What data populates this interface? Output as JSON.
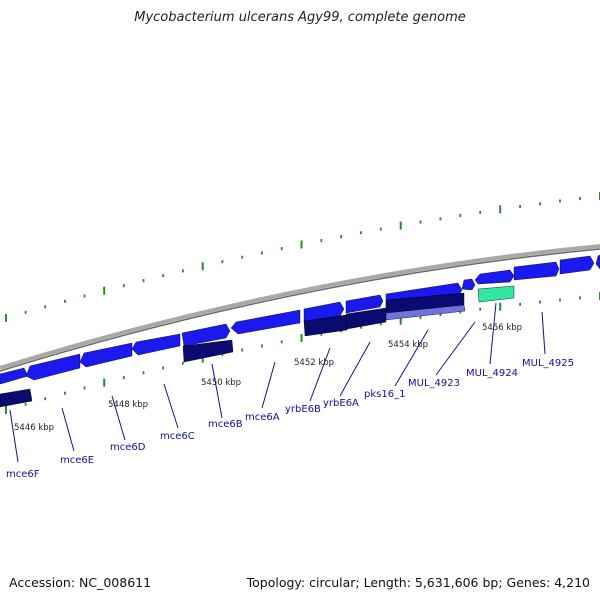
{
  "title": "Mycobacterium ulcerans Agy99, complete genome",
  "footer": {
    "accession": "Accession: NC_008611",
    "topology": "Topology: circular; Length: 5,631,606 bp; Genes: 4,210"
  },
  "kbp_labels": [
    "5446 kbp",
    "5448 kbp",
    "5450 kbp",
    "5452 kbp",
    "5454 kbp",
    "5456 kbp"
  ],
  "gene_labels": [
    "mce6F",
    "mce6E",
    "mce6D",
    "mce6C",
    "mce6B",
    "mce6A",
    "yrbE6B",
    "yrbE6A",
    "pks16_1",
    "MUL_4923",
    "MUL_4924",
    "MUL_4925"
  ],
  "colors": {
    "forward_gene": "#1a1af0",
    "reverse_gene": "#0a0a70",
    "pseudo_gene": "#7070e0",
    "other_feature": "#30e8a0",
    "backbone": "#8a8a8a",
    "tick": "#2a8a2a",
    "label_text": "#1010a0"
  }
}
